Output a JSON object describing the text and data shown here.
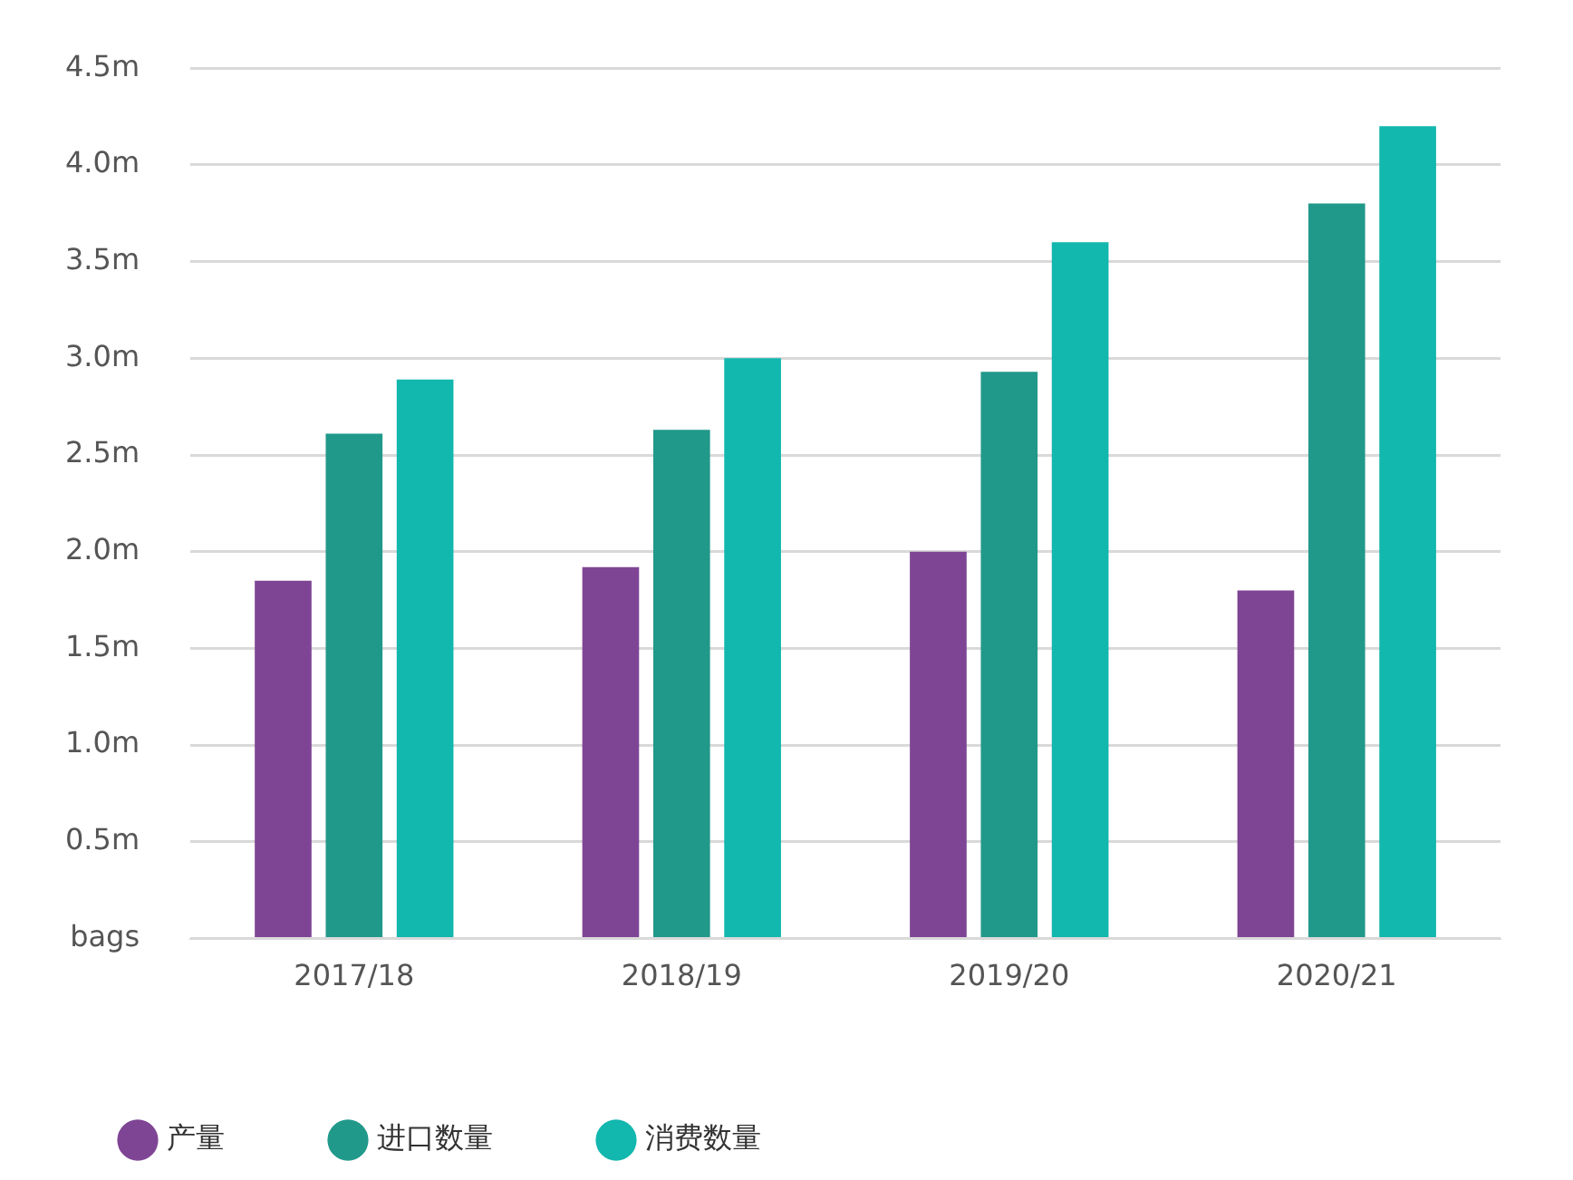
{
  "chart_data": {
    "type": "bar",
    "categories": [
      "2017/18",
      "2018/19",
      "2019/20",
      "2020/21"
    ],
    "series": [
      {
        "name": "产量",
        "color": "#7f4595",
        "values": [
          1.85,
          1.92,
          2.0,
          1.8
        ]
      },
      {
        "name": "进口数量",
        "color": "#21998a",
        "values": [
          2.61,
          2.63,
          2.93,
          3.8
        ]
      },
      {
        "name": "消费数量",
        "color": "#12b7ae",
        "values": [
          2.89,
          3.0,
          3.6,
          4.2
        ]
      }
    ],
    "ylim": [
      0,
      4.5
    ],
    "yticks": [
      {
        "value": 0,
        "label": "bags"
      },
      {
        "value": 0.5,
        "label": "0.5m"
      },
      {
        "value": 1,
        "label": "1.0m"
      },
      {
        "value": 1.5,
        "label": "1.5m"
      },
      {
        "value": 2,
        "label": "2.0m"
      },
      {
        "value": 2.5,
        "label": "2.5m"
      },
      {
        "value": 3,
        "label": "3.0m"
      },
      {
        "value": 3.5,
        "label": "3.5m"
      },
      {
        "value": 4,
        "label": "4.0m"
      },
      {
        "value": 4.5,
        "label": "4.5m"
      }
    ],
    "grid": "y",
    "legend": "bottom left"
  }
}
